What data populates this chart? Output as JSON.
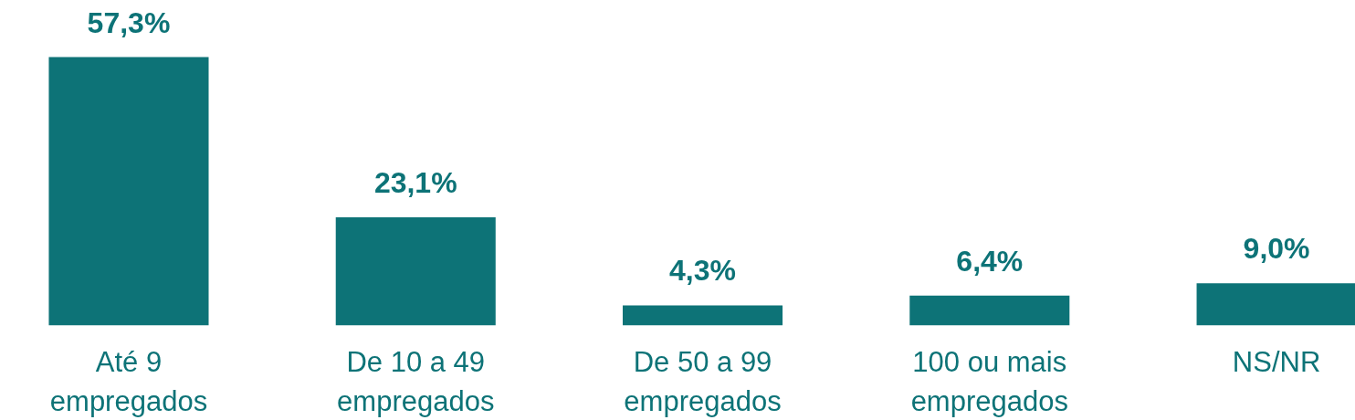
{
  "chart_data": {
    "type": "bar",
    "categories": [
      "Até 9 empregados",
      "De 10 a 49 empregados",
      "De 50 a 99 empregados",
      "100 ou mais empregados",
      "NS/NR"
    ],
    "values": [
      57.3,
      23.1,
      4.3,
      6.4,
      9.0
    ],
    "color": "#0d7377",
    "value_labels": [
      "57,3%",
      "23,1%",
      "4,3%",
      "6,4%",
      "9,0%"
    ]
  }
}
